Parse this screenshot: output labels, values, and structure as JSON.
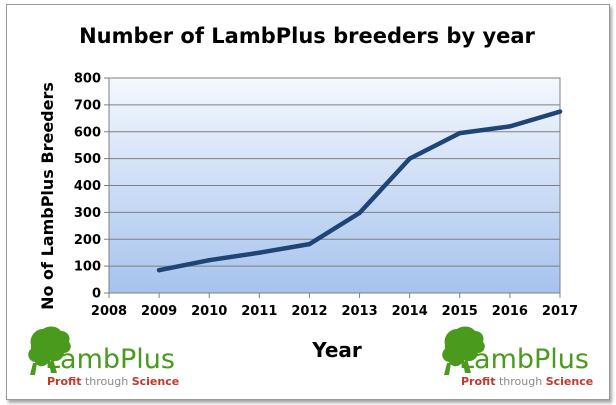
{
  "chart_data": {
    "type": "line",
    "title": "Number of LambPlus breeders by year",
    "xlabel": "Year",
    "ylabel": "No of LambPlus Breeders",
    "x": [
      2009,
      2010,
      2011,
      2012,
      2013,
      2014,
      2015,
      2016,
      2017
    ],
    "series": [
      {
        "values": [
          85,
          122,
          150,
          182,
          298,
          500,
          595,
          620,
          675
        ]
      }
    ],
    "xticks": [
      "2008",
      "2009",
      "2010",
      "2011",
      "2012",
      "2013",
      "2014",
      "2015",
      "2016",
      "2017"
    ],
    "yticks": [
      "0",
      "100",
      "200",
      "300",
      "400",
      "500",
      "600",
      "700",
      "800"
    ],
    "xlim": [
      2008,
      2017
    ],
    "ylim": [
      0,
      800
    ],
    "grid": "horizontal",
    "legend": "none",
    "colors": {
      "line": "#1f4476",
      "plot_top": "#f4f8fe",
      "plot_bottom": "#a6c3ee",
      "grid": "#7f7f7f"
    }
  },
  "logos": {
    "left": {
      "name": "LambPlus",
      "tagline_a": "Profit",
      "tagline_b": " through ",
      "tagline_c": "Science"
    },
    "right": {
      "name": "LambPlus",
      "tagline_a": "Profit",
      "tagline_b": " through ",
      "tagline_c": "Science"
    }
  }
}
